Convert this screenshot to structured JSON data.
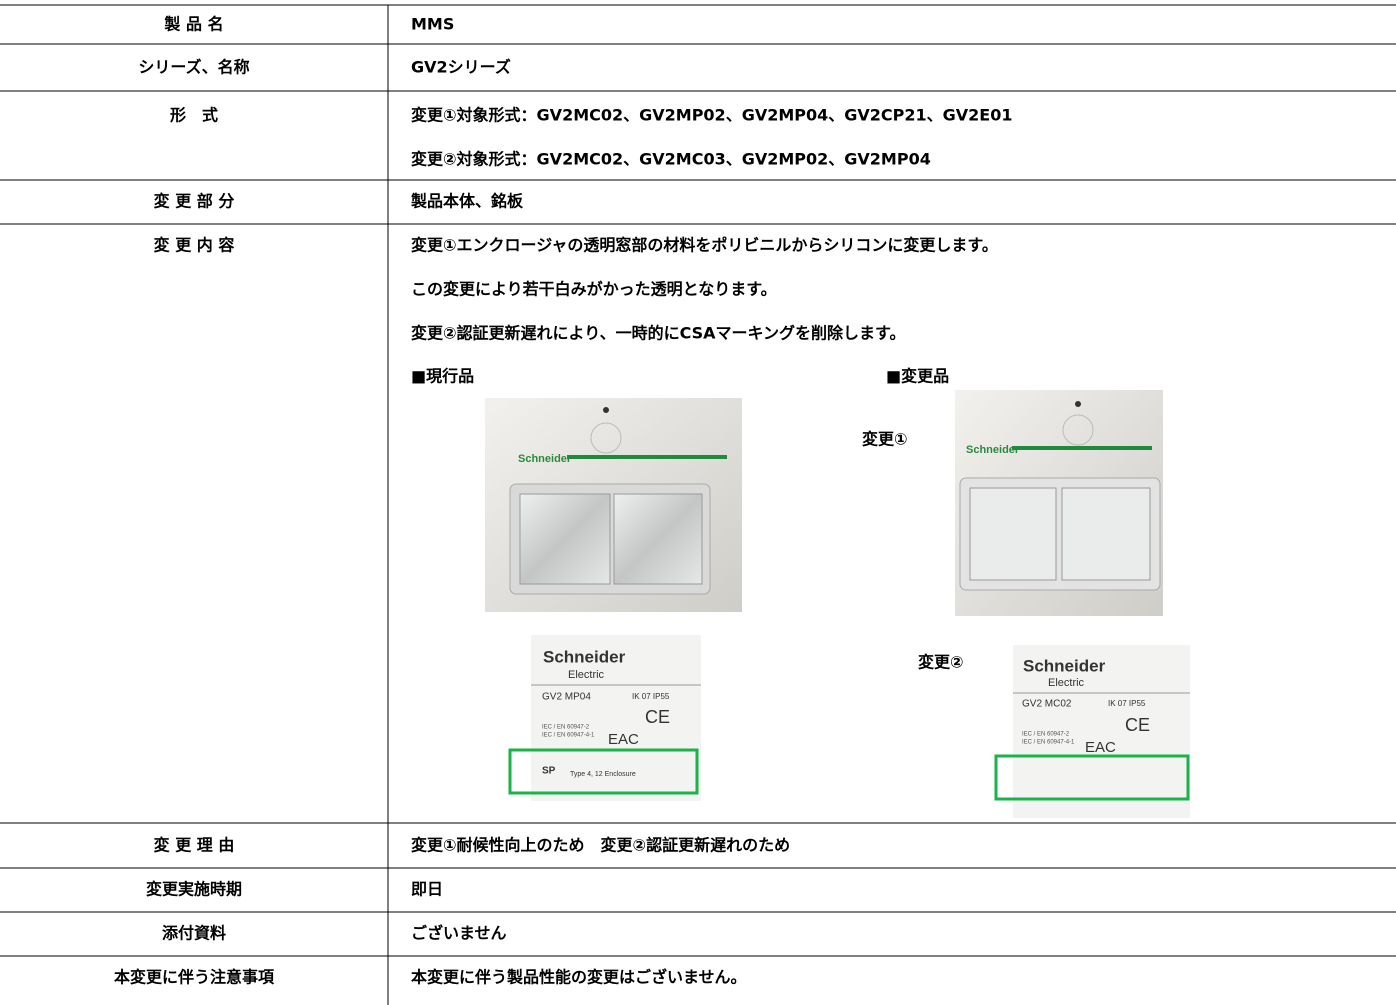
{
  "table": {
    "rows": [
      {
        "label": "製 品 名",
        "lines": [
          "MMS"
        ]
      },
      {
        "label": "シリーズ、名称",
        "lines": [
          "GV2シリーズ"
        ]
      },
      {
        "label": "形　式",
        "lines": [
          "変更①対象形式：GV2MC02、GV2MP02、GV2MP04、GV2CP21、GV2E01",
          "変更②対象形式：GV2MC02、GV2MC03、GV2MP02、GV2MP04"
        ]
      },
      {
        "label": "変 更 部 分",
        "lines": [
          "製品本体、銘板"
        ]
      },
      {
        "label": "変 更 内 容",
        "lines": [
          "変更①エンクロージャの透明窓部の材料をポリビニルからシリコンに変更します。",
          "この変更により若干白みがかった透明となります。",
          "変更②認証更新遅れにより、一時的にCSAマーキングを削除します。"
        ]
      },
      {
        "label": "変 更 理 由",
        "lines": [
          "変更①耐候性向上のため　変更②認証更新遅れのため"
        ]
      },
      {
        "label": "変更実施時期",
        "lines": [
          "即日"
        ]
      },
      {
        "label": "添付資料",
        "lines": [
          "ございません"
        ]
      },
      {
        "label": "本変更に伴う注意事項",
        "lines": [
          "本変更に伴う製品性能の変更はございません。"
        ]
      }
    ]
  },
  "figures": {
    "current_heading": "■現行品",
    "changed_heading": "■変更品",
    "change1_label": "変更①",
    "change2_label": "変更②",
    "photo_text": {
      "brand": "Schneider",
      "sub": "Electric",
      "current_model": "GV2 MP04",
      "changed_model": "GV2 MC02",
      "rating": "IK 07 IP55",
      "std1": "IEC / EN 60947-2",
      "std2": "IEC / EN 60947-4-1",
      "ce": "CE",
      "eac": "EAC",
      "csa": "SP",
      "enclosure": "Type 4, 12 Enclosure"
    }
  }
}
